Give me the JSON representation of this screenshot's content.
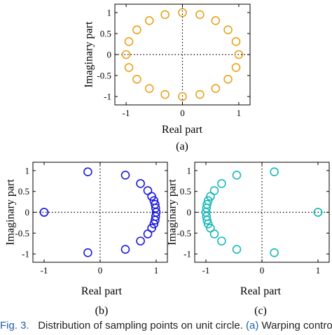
{
  "figure": {
    "caption_prefix": "Fig. 3.",
    "caption_text": "Distribution of sampling points on unit circle.",
    "caption_ref": "(a)",
    "caption_tail": "Warping control"
  },
  "chart_data": [
    {
      "type": "scatter",
      "label": "(a)",
      "xlabel": "Real part",
      "ylabel": "Imaginary part",
      "xlim": [
        -1.2,
        1.2
      ],
      "ylim": [
        -1.2,
        1.2
      ],
      "xticks": [
        "-1",
        "0",
        "1"
      ],
      "yticks": [
        "1",
        "0.5",
        "0",
        "-0.5",
        "-1"
      ],
      "color": "#e8a21a",
      "points": [
        [
          1.0,
          0.0
        ],
        [
          0.951,
          0.309
        ],
        [
          0.809,
          0.588
        ],
        [
          0.588,
          0.809
        ],
        [
          0.309,
          0.951
        ],
        [
          0.0,
          1.0
        ],
        [
          -0.309,
          0.951
        ],
        [
          -0.588,
          0.809
        ],
        [
          -0.809,
          0.588
        ],
        [
          -0.951,
          0.309
        ],
        [
          -1.0,
          0.0
        ],
        [
          -0.951,
          -0.309
        ],
        [
          -0.809,
          -0.588
        ],
        [
          -0.588,
          -0.809
        ],
        [
          -0.309,
          -0.951
        ],
        [
          0.0,
          -1.0
        ],
        [
          0.309,
          -0.951
        ],
        [
          0.588,
          -0.809
        ],
        [
          0.809,
          -0.588
        ],
        [
          0.951,
          -0.309
        ]
      ]
    },
    {
      "type": "scatter",
      "label": "(b)",
      "xlabel": "Real part",
      "ylabel": "Imaginary part",
      "xlim": [
        -1.2,
        1.2
      ],
      "ylim": [
        -1.2,
        1.2
      ],
      "xticks": [
        "-1",
        "0",
        "1"
      ],
      "yticks": [
        "1",
        "0.5",
        "0",
        "-0.5",
        "-1"
      ],
      "color": "#1a1adc",
      "points": [
        [
          -1.0,
          0.0
        ],
        [
          -1.0,
          0.0
        ],
        [
          -0.22,
          0.97
        ],
        [
          -0.22,
          -0.97
        ],
        [
          0.45,
          0.89
        ],
        [
          0.45,
          -0.89
        ],
        [
          0.72,
          0.69
        ],
        [
          0.72,
          -0.69
        ],
        [
          0.85,
          0.52
        ],
        [
          0.85,
          -0.52
        ],
        [
          0.92,
          0.38
        ],
        [
          0.92,
          -0.38
        ],
        [
          0.96,
          0.28
        ],
        [
          0.96,
          -0.28
        ],
        [
          0.98,
          0.19
        ],
        [
          0.98,
          -0.19
        ],
        [
          0.99,
          0.1
        ],
        [
          0.99,
          -0.1
        ],
        [
          1.0,
          0.0
        ]
      ]
    },
    {
      "type": "scatter",
      "label": "(c)",
      "xlabel": "Real part",
      "ylabel": "Imaginary part",
      "xlim": [
        -1.2,
        1.2
      ],
      "ylim": [
        -1.2,
        1.2
      ],
      "xticks": [
        "-1",
        "0",
        "1"
      ],
      "yticks": [
        "1",
        "0.5",
        "0",
        "-0.5",
        "-1"
      ],
      "color": "#1ab8b8",
      "points": [
        [
          1.0,
          0.0
        ],
        [
          1.0,
          0.0
        ],
        [
          0.22,
          0.97
        ],
        [
          0.22,
          -0.97
        ],
        [
          -0.45,
          0.89
        ],
        [
          -0.45,
          -0.89
        ],
        [
          -0.72,
          0.69
        ],
        [
          -0.72,
          -0.69
        ],
        [
          -0.85,
          0.52
        ],
        [
          -0.85,
          -0.52
        ],
        [
          -0.92,
          0.38
        ],
        [
          -0.92,
          -0.38
        ],
        [
          -0.96,
          0.28
        ],
        [
          -0.96,
          -0.28
        ],
        [
          -0.98,
          0.19
        ],
        [
          -0.98,
          -0.19
        ],
        [
          -0.99,
          0.1
        ],
        [
          -0.99,
          -0.1
        ],
        [
          -1.0,
          0.0
        ]
      ]
    }
  ]
}
